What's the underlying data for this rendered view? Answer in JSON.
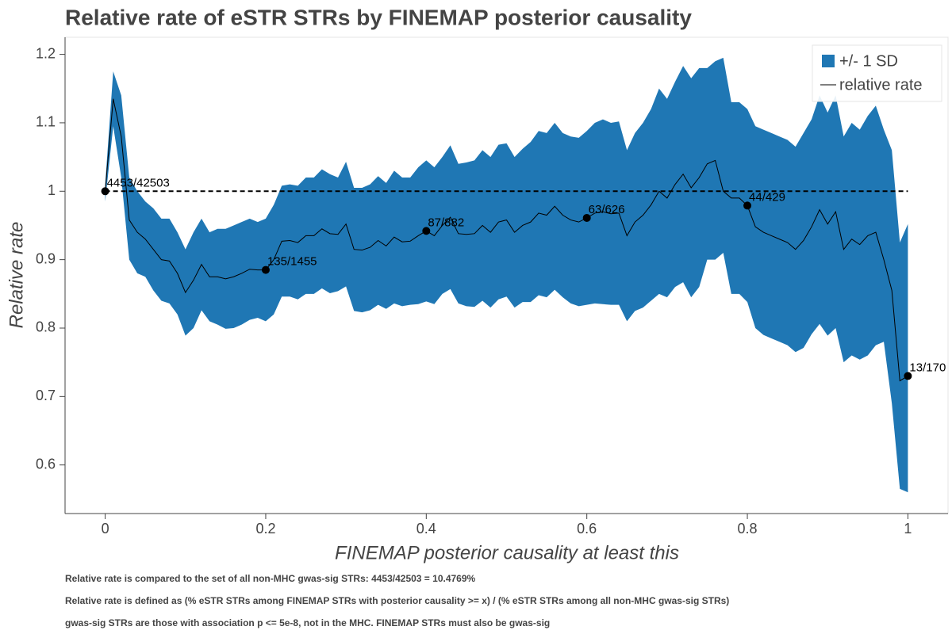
{
  "chart_data": {
    "type": "band_line",
    "title": "Relative rate of eSTR STRs by FINEMAP posterior causality",
    "xlabel": "FINEMAP posterior causality at least this",
    "ylabel": "Relative rate",
    "notes": [
      "Relative rate is compared to the set of all non-MHC gwas-sig STRs: 4453/42503 = 10.4769%",
      "Relative rate is defined as (% eSTR STRs among FINEMAP STRs with posterior causality >= x) / (% eSTR STRs among all non-MHC gwas-sig STRs)",
      "gwas-sig STRs are those with association p <= 5e-8, not in the MHC. FINEMAP STRs must also be gwas-sig"
    ],
    "xlim": [
      -0.05,
      1.05
    ],
    "xticks": [
      0,
      0.2,
      0.4,
      0.6,
      0.8,
      1
    ],
    "ylim": [
      0.529,
      1.225
    ],
    "yticks": [
      0.6,
      0.7,
      0.8,
      0.9,
      1,
      1.1,
      1.2
    ],
    "hline": 1,
    "legend": "top-right",
    "x": [
      0,
      0.01,
      0.02,
      0.03,
      0.04,
      0.05,
      0.06,
      0.07,
      0.08,
      0.09,
      0.1,
      0.11,
      0.12,
      0.13,
      0.14,
      0.15,
      0.16,
      0.17,
      0.18,
      0.19,
      0.2,
      0.21,
      0.22,
      0.23,
      0.24,
      0.25,
      0.26,
      0.27,
      0.28,
      0.29,
      0.3,
      0.31,
      0.32,
      0.33,
      0.34,
      0.35,
      0.36,
      0.37,
      0.38,
      0.39,
      0.4,
      0.41,
      0.42,
      0.43,
      0.44,
      0.45,
      0.46,
      0.47,
      0.48,
      0.49,
      0.5,
      0.51,
      0.52,
      0.53,
      0.54,
      0.55,
      0.56,
      0.57,
      0.58,
      0.59,
      0.6,
      0.61,
      0.62,
      0.63,
      0.64,
      0.65,
      0.66,
      0.67,
      0.68,
      0.69,
      0.7,
      0.71,
      0.72,
      0.73,
      0.74,
      0.75,
      0.76,
      0.77,
      0.78,
      0.79,
      0.8,
      0.81,
      0.82,
      0.83,
      0.84,
      0.85,
      0.86,
      0.87,
      0.88,
      0.89,
      0.9,
      0.91,
      0.92,
      0.93,
      0.94,
      0.95,
      0.96,
      0.97,
      0.98,
      0.99,
      1
    ],
    "band": {
      "name": "+/- 1 SD",
      "color": "#1f77b4",
      "upper": [
        1.01,
        1.175,
        1.14,
        1.02,
        1.0,
        0.985,
        0.975,
        0.96,
        0.96,
        0.94,
        0.915,
        0.94,
        0.96,
        0.94,
        0.945,
        0.945,
        0.95,
        0.955,
        0.96,
        0.955,
        0.96,
        0.98,
        1.008,
        1.01,
        1.008,
        1.02,
        1.02,
        1.032,
        1.025,
        1.02,
        1.043,
        1.005,
        1.005,
        1.01,
        1.022,
        1.012,
        1.03,
        1.02,
        1.02,
        1.035,
        1.045,
        1.035,
        1.05,
        1.067,
        1.04,
        1.042,
        1.045,
        1.06,
        1.05,
        1.068,
        1.07,
        1.05,
        1.062,
        1.072,
        1.088,
        1.085,
        1.1,
        1.085,
        1.08,
        1.078,
        1.088,
        1.1,
        1.105,
        1.1,
        1.102,
        1.06,
        1.085,
        1.1,
        1.12,
        1.15,
        1.135,
        1.16,
        1.183,
        1.165,
        1.18,
        1.18,
        1.19,
        1.195,
        1.13,
        1.13,
        1.12,
        1.095,
        1.09,
        1.085,
        1.08,
        1.075,
        1.065,
        1.085,
        1.105,
        1.14,
        1.115,
        1.14,
        1.08,
        1.1,
        1.09,
        1.11,
        1.125,
        1.09,
        1.06,
        0.925,
        0.952
      ],
      "lower": [
        0.985,
        1.095,
        1.02,
        0.9,
        0.88,
        0.875,
        0.855,
        0.84,
        0.836,
        0.82,
        0.789,
        0.8,
        0.826,
        0.81,
        0.805,
        0.799,
        0.8,
        0.805,
        0.812,
        0.815,
        0.81,
        0.82,
        0.846,
        0.846,
        0.842,
        0.85,
        0.85,
        0.858,
        0.851,
        0.854,
        0.861,
        0.825,
        0.823,
        0.826,
        0.834,
        0.828,
        0.836,
        0.832,
        0.834,
        0.835,
        0.839,
        0.835,
        0.85,
        0.857,
        0.836,
        0.832,
        0.831,
        0.84,
        0.83,
        0.842,
        0.846,
        0.83,
        0.838,
        0.838,
        0.848,
        0.845,
        0.856,
        0.845,
        0.836,
        0.832,
        0.834,
        0.836,
        0.835,
        0.834,
        0.834,
        0.81,
        0.825,
        0.83,
        0.84,
        0.85,
        0.845,
        0.86,
        0.867,
        0.845,
        0.86,
        0.9,
        0.9,
        0.91,
        0.85,
        0.85,
        0.838,
        0.8,
        0.79,
        0.785,
        0.78,
        0.775,
        0.765,
        0.771,
        0.791,
        0.806,
        0.789,
        0.8,
        0.75,
        0.76,
        0.754,
        0.76,
        0.775,
        0.78,
        0.69,
        0.565,
        0.56
      ]
    },
    "line": {
      "name": "relative rate",
      "color": "#000000",
      "values": [
        1.0,
        1.135,
        1.08,
        0.958,
        0.94,
        0.93,
        0.915,
        0.9,
        0.898,
        0.88,
        0.852,
        0.87,
        0.893,
        0.875,
        0.875,
        0.872,
        0.875,
        0.88,
        0.886,
        0.885,
        0.885,
        0.9,
        0.927,
        0.928,
        0.925,
        0.935,
        0.935,
        0.945,
        0.938,
        0.937,
        0.952,
        0.915,
        0.914,
        0.918,
        0.928,
        0.92,
        0.933,
        0.926,
        0.927,
        0.935,
        0.942,
        0.935,
        0.95,
        0.962,
        0.938,
        0.937,
        0.938,
        0.95,
        0.94,
        0.955,
        0.958,
        0.94,
        0.95,
        0.955,
        0.968,
        0.965,
        0.978,
        0.965,
        0.958,
        0.955,
        0.961,
        0.968,
        0.97,
        0.967,
        0.968,
        0.935,
        0.955,
        0.965,
        0.98,
        1.0,
        0.99,
        1.01,
        1.025,
        1.005,
        1.02,
        1.04,
        1.045,
        1.0,
        0.99,
        0.99,
        0.979,
        0.948,
        0.94,
        0.935,
        0.93,
        0.925,
        0.915,
        0.928,
        0.948,
        0.973,
        0.952,
        0.97,
        0.915,
        0.93,
        0.922,
        0.935,
        0.94,
        0.9,
        0.855,
        0.723,
        0.73
      ]
    },
    "points": {
      "color": "#000000",
      "x": [
        0,
        0.2,
        0.4,
        0.6,
        0.8,
        1
      ],
      "values": [
        1.0,
        0.885,
        0.942,
        0.961,
        0.979,
        0.73
      ],
      "labels": [
        "4453/42503",
        "135/1455",
        "87/882",
        "63/626",
        "44/429",
        "13/170"
      ]
    }
  }
}
